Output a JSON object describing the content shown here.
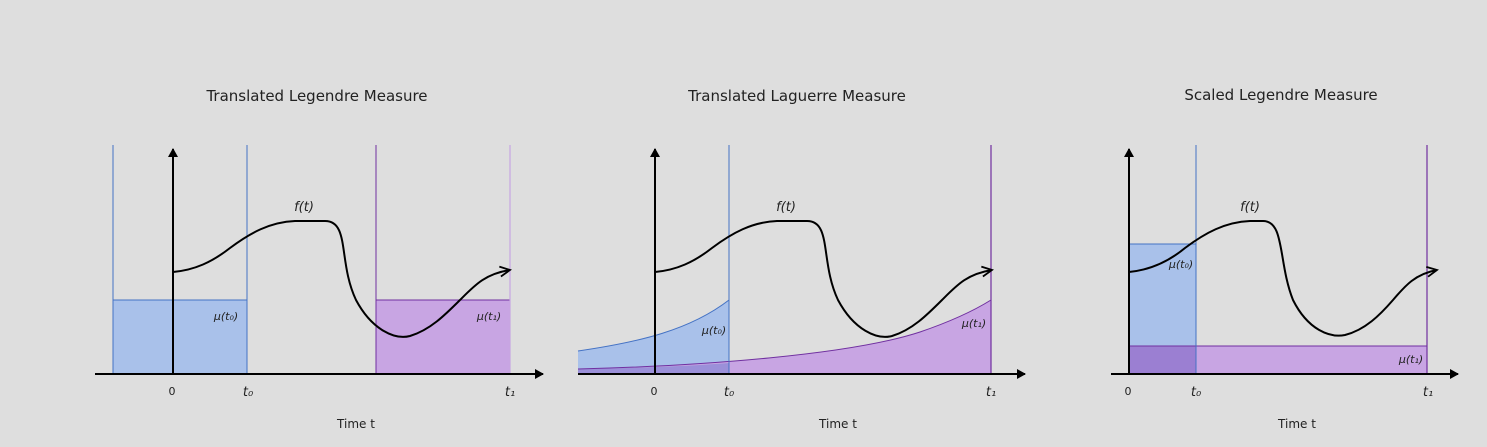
{
  "colors": {
    "background": "#dedede",
    "blue_fill": "#a9c1ea",
    "blue_line": "#4472c4",
    "purple_fill": "#c8a5e3",
    "purple_line": "#7030a0",
    "overlap_fill": "#9b7fd2",
    "axis": "#000000"
  },
  "panels": [
    {
      "title": "Translated Legendre Measure",
      "f_label": "f(t)",
      "mu0_label": "μ(t₀)",
      "mu1_label": "μ(t₁)",
      "ticks": {
        "zero": "0",
        "t0": "t₀",
        "t1": "t₁"
      },
      "xlabel": "Time t"
    },
    {
      "title": "Translated Laguerre Measure",
      "f_label": "f(t)",
      "mu0_label": "μ(t₀)",
      "mu1_label": "μ(t₁)",
      "ticks": {
        "zero": "0",
        "t0": "t₀",
        "t1": "t₁"
      },
      "xlabel": "Time t"
    },
    {
      "title": "Scaled Legendre Measure",
      "f_label": "f(t)",
      "mu0_label": "μ(t₀)",
      "mu1_label": "μ(t₁)",
      "ticks": {
        "zero": "0",
        "t0": "t₀",
        "t1": "t₁"
      },
      "xlabel": "Time t"
    }
  ]
}
